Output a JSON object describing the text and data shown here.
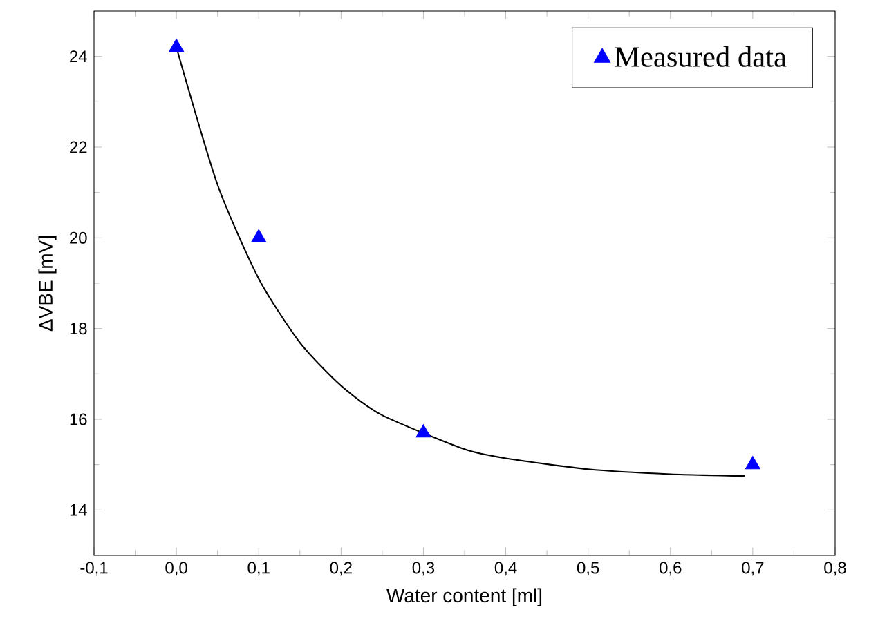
{
  "chart_data": {
    "type": "scatter",
    "xlabel": "Water content [ml]",
    "ylabel": "ΔVBE [mV]",
    "xlim": [
      -0.1,
      0.8
    ],
    "ylim": [
      13,
      25
    ],
    "xticks": [
      {
        "value": -0.1,
        "label": "-0,1"
      },
      {
        "value": 0.0,
        "label": "0,0"
      },
      {
        "value": 0.1,
        "label": "0,1"
      },
      {
        "value": 0.2,
        "label": "0,2"
      },
      {
        "value": 0.3,
        "label": "0,3"
      },
      {
        "value": 0.4,
        "label": "0,4"
      },
      {
        "value": 0.5,
        "label": "0,5"
      },
      {
        "value": 0.6,
        "label": "0,6"
      },
      {
        "value": 0.7,
        "label": "0,7"
      },
      {
        "value": 0.8,
        "label": "0,8"
      }
    ],
    "yticks": [
      14,
      16,
      18,
      20,
      22,
      24
    ],
    "legend": "top right",
    "grid": false,
    "series": [
      {
        "name": "Measured data",
        "marker": "triangle",
        "color": "#0000ff",
        "x": [
          0.0,
          0.1,
          0.3,
          0.7
        ],
        "values": [
          24.2,
          20.0,
          15.7,
          15.0
        ]
      },
      {
        "type": "line",
        "marker": "none",
        "color": "#000000",
        "x": [
          0.0,
          0.05,
          0.1,
          0.15,
          0.2,
          0.25,
          0.35,
          0.4,
          0.5,
          0.6,
          0.69
        ],
        "values": [
          24.2,
          21.17,
          19.1,
          17.69,
          16.74,
          16.09,
          15.34,
          15.14,
          14.9,
          14.79,
          14.75
        ]
      }
    ]
  }
}
